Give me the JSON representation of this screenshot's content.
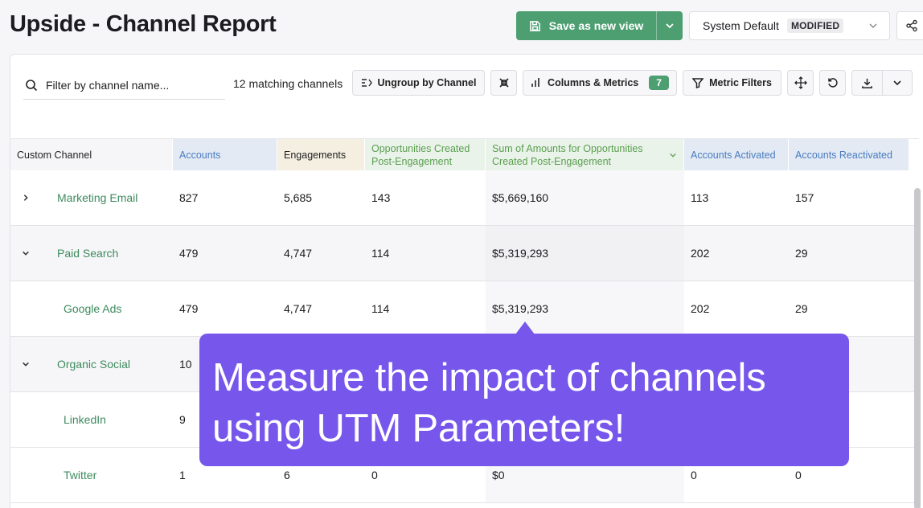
{
  "header": {
    "title": "Upside - Channel Report",
    "save_label": "Save as new view",
    "view_name": "System Default",
    "view_badge": "MODIFIED"
  },
  "toolbar": {
    "search_placeholder": "Filter by channel name...",
    "match_count": "12 matching channels",
    "ungroup_label": "Ungroup by Channel",
    "columns_label": "Columns & Metrics",
    "columns_count": "7",
    "filters_label": "Metric Filters"
  },
  "table": {
    "headers": [
      "Custom Channel",
      "Accounts",
      "Engagements",
      "Opportunities Created Post-Engagement",
      "Sum of Amounts for Opportunities Created Post-Engagement",
      "Accounts Activated",
      "Accounts Reactivated"
    ],
    "rows": [
      {
        "name": "Marketing Email",
        "expander": "collapsed",
        "accounts": "827",
        "engagements": "5,685",
        "opps": "143",
        "sum": "$5,669,160",
        "activated": "113",
        "reactivated": "157"
      },
      {
        "name": "Paid Search",
        "expander": "expanded",
        "accounts": "479",
        "engagements": "4,747",
        "opps": "114",
        "sum": "$5,319,293",
        "activated": "202",
        "reactivated": "29"
      },
      {
        "name": "Google Ads",
        "expander": "none",
        "accounts": "479",
        "engagements": "4,747",
        "opps": "114",
        "sum": "$5,319,293",
        "activated": "202",
        "reactivated": "29"
      },
      {
        "name": "Organic Social",
        "expander": "expanded",
        "accounts": "10",
        "engagements": "",
        "opps": "",
        "sum": "",
        "activated": "",
        "reactivated": ""
      },
      {
        "name": "LinkedIn",
        "expander": "none",
        "accounts": "9",
        "engagements": "",
        "opps": "",
        "sum": "",
        "activated": "",
        "reactivated": ""
      },
      {
        "name": "Twitter",
        "expander": "none",
        "accounts": "1",
        "engagements": "6",
        "opps": "0",
        "sum": "$0",
        "activated": "0",
        "reactivated": "0"
      }
    ]
  },
  "callout": {
    "line1": "Measure the impact of channels",
    "line2": "using UTM Parameters!"
  },
  "colors": {
    "accent_green": "#4d9f72",
    "channel_text": "#3d8a5e",
    "callout_purple": "#7656eb",
    "header_blue_bg": "#e3eaf4",
    "header_blue_text": "#4a7cc0",
    "header_beige_bg": "#f5efe2",
    "header_green_bg": "#eaf3ea",
    "header_green_text": "#5a9e4f"
  }
}
